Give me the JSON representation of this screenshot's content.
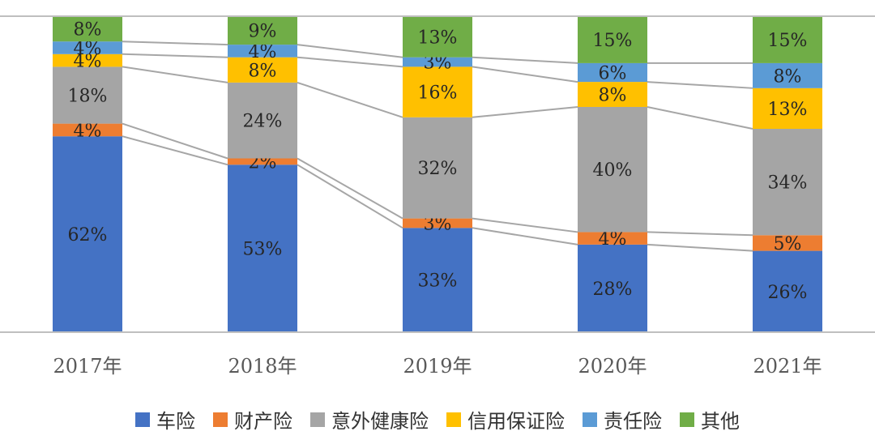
{
  "chart_data": {
    "type": "bar",
    "stacked": true,
    "percent": true,
    "categories": [
      "2017年",
      "2018年",
      "2019年",
      "2020年",
      "2021年"
    ],
    "series": [
      {
        "name": "车险",
        "values": [
          62,
          53,
          33,
          28,
          26
        ],
        "labels": [
          "62%",
          "53%",
          "33%",
          "28%",
          "26%"
        ],
        "color": "#4472C4"
      },
      {
        "name": "财产险",
        "values": [
          4,
          2,
          3,
          4,
          5
        ],
        "labels": [
          "4%",
          "2%",
          "3%",
          "4%",
          "5%"
        ],
        "color": "#ED7D31"
      },
      {
        "name": "意外健康险",
        "values": [
          18,
          24,
          32,
          40,
          34
        ],
        "labels": [
          "18%",
          "24%",
          "32%",
          "40%",
          "34%"
        ],
        "color": "#A5A5A5"
      },
      {
        "name": "信用保证险",
        "values": [
          4,
          8,
          16,
          8,
          13
        ],
        "labels": [
          "4%",
          "8%",
          "16%",
          "8%",
          "13%"
        ],
        "color": "#FFC000"
      },
      {
        "name": "责任险",
        "values": [
          4,
          4,
          3,
          6,
          8
        ],
        "labels": [
          "4%",
          "4%",
          "3%",
          "6%",
          "8%"
        ],
        "color": "#5B9BD5"
      },
      {
        "name": "其他",
        "values": [
          8,
          9,
          13,
          15,
          15
        ],
        "labels": [
          "8%",
          "9%",
          "13%",
          "15%",
          "15%"
        ],
        "color": "#70AD47"
      }
    ],
    "ylim": [
      0,
      100
    ],
    "legend": "bottom",
    "grid": false,
    "series_lines": true
  }
}
